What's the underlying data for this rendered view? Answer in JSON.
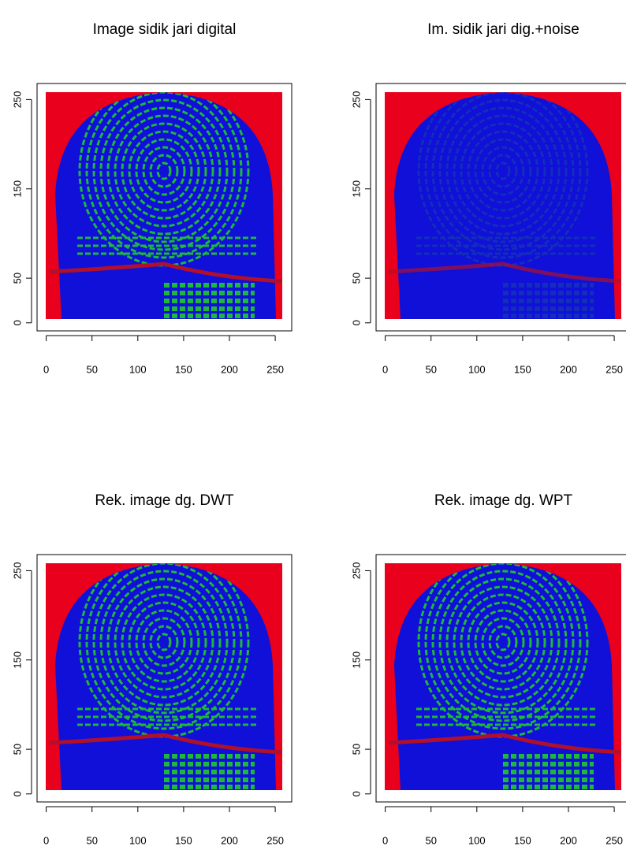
{
  "chart_data": [
    {
      "type": "image",
      "title": "Image sidik jari digital",
      "xlim": [
        -10,
        268
      ],
      "ylim": [
        -9,
        268
      ],
      "xticks": [
        0,
        50,
        100,
        150,
        200,
        250
      ],
      "yticks": [
        0,
        50,
        150,
        250
      ]
    },
    {
      "type": "image",
      "title": "Im. sidik jari dig.+noise",
      "xlim": [
        -10,
        268
      ],
      "ylim": [
        -9,
        268
      ],
      "xticks": [
        0,
        50,
        100,
        150,
        200,
        250
      ],
      "yticks": [
        0,
        50,
        150,
        250
      ]
    },
    {
      "type": "image",
      "title": "Rek. image dg. DWT",
      "xlim": [
        -10,
        268
      ],
      "ylim": [
        -9,
        268
      ],
      "xticks": [
        0,
        50,
        100,
        150,
        200,
        250
      ],
      "yticks": [
        0,
        50,
        150,
        250
      ]
    },
    {
      "type": "image",
      "title": "Rek. image dg. WPT",
      "xlim": [
        -10,
        268
      ],
      "ylim": [
        -9,
        268
      ],
      "xticks": [
        0,
        50,
        100,
        150,
        200,
        250
      ],
      "yticks": [
        0,
        50,
        150,
        250
      ]
    }
  ]
}
